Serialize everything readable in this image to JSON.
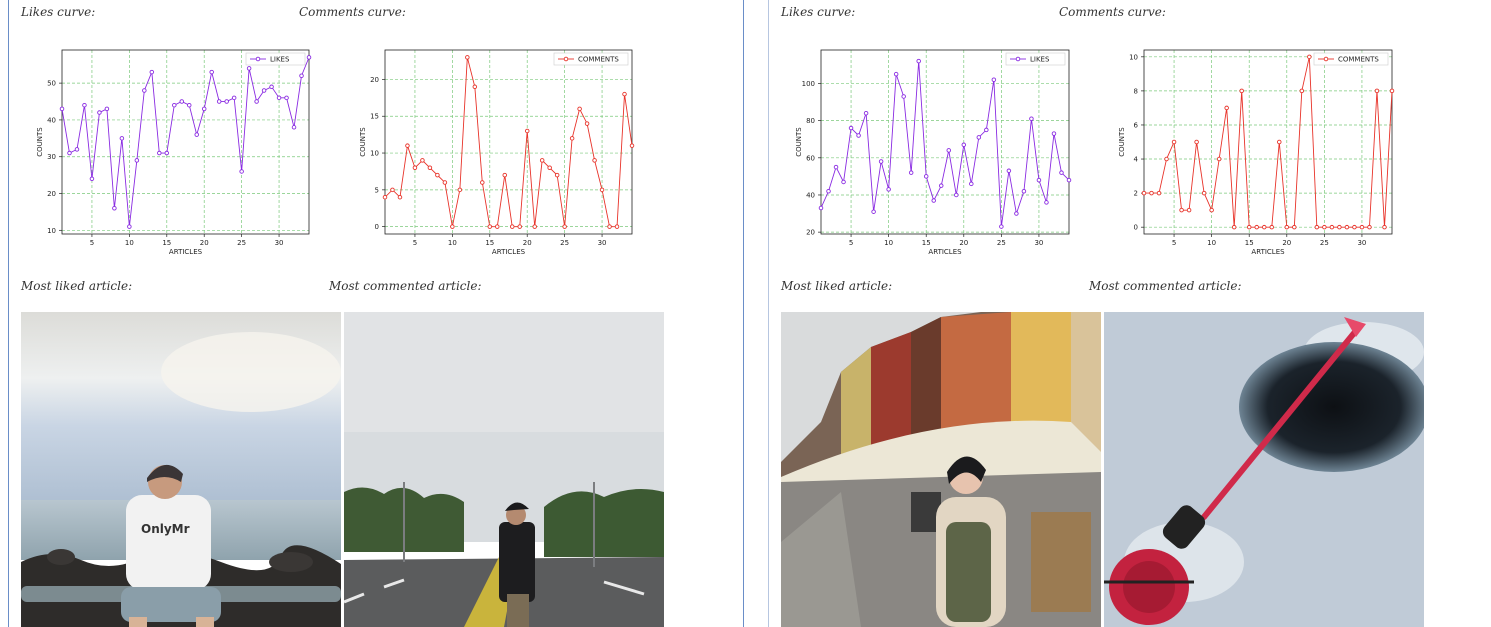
{
  "panels": [
    {
      "likes_label": "Likes curve:",
      "comments_label": "Comments curve:",
      "most_liked_label": "Most liked article:",
      "most_commented_label": "Most commented article:"
    },
    {
      "likes_label": "Likes curve:",
      "comments_label": "Comments curve:",
      "most_liked_label": "Most liked article:",
      "most_commented_label": "Most commented article:"
    }
  ],
  "chart_data": [
    {
      "type": "line",
      "xlabel": "ARTICLES",
      "ylabel": "COUNTS",
      "xlim": [
        1,
        34
      ],
      "ylim": [
        9,
        59
      ],
      "xticks": [
        5,
        10,
        15,
        20,
        25,
        30
      ],
      "yticks": [
        10,
        20,
        30,
        40,
        50
      ],
      "grid": true,
      "legend": "top-right",
      "color": "#8a2be2",
      "series": [
        {
          "name": "LIKES",
          "x": [
            1,
            2,
            3,
            4,
            5,
            6,
            7,
            8,
            9,
            10,
            11,
            12,
            13,
            14,
            15,
            16,
            17,
            18,
            19,
            20,
            21,
            22,
            23,
            24,
            25,
            26,
            27,
            28,
            29,
            30,
            31,
            32,
            33,
            34
          ],
          "values": [
            43,
            31,
            32,
            44,
            24,
            42,
            43,
            16,
            35,
            11,
            29,
            48,
            53,
            31,
            31,
            44,
            45,
            44,
            36,
            43,
            53,
            45,
            45,
            46,
            26,
            54,
            45,
            48,
            49,
            46,
            46,
            38,
            52,
            57
          ]
        }
      ]
    },
    {
      "type": "line",
      "xlabel": "ARTICLES",
      "ylabel": "COUNTS",
      "xlim": [
        1,
        34
      ],
      "ylim": [
        -1,
        24
      ],
      "xticks": [
        5,
        10,
        15,
        20,
        25,
        30
      ],
      "yticks": [
        0,
        5,
        10,
        15,
        20
      ],
      "grid": true,
      "legend": "top-right",
      "color": "#e8332a",
      "series": [
        {
          "name": "COMMENTS",
          "x": [
            1,
            2,
            3,
            4,
            5,
            6,
            7,
            8,
            9,
            10,
            11,
            12,
            13,
            14,
            15,
            16,
            17,
            18,
            19,
            20,
            21,
            22,
            23,
            24,
            25,
            26,
            27,
            28,
            29,
            30,
            31,
            32,
            33,
            34
          ],
          "values": [
            4,
            5,
            4,
            11,
            8,
            9,
            8,
            7,
            6,
            0,
            5,
            23,
            19,
            6,
            0,
            0,
            7,
            0,
            0,
            13,
            0,
            9,
            8,
            7,
            0,
            12,
            16,
            14,
            9,
            5,
            0,
            0,
            18,
            11
          ]
        }
      ]
    },
    {
      "type": "line",
      "xlabel": "ARTICLES",
      "ylabel": "COUNTS",
      "xlim": [
        1,
        34
      ],
      "ylim": [
        19,
        118
      ],
      "xticks": [
        5,
        10,
        15,
        20,
        25,
        30
      ],
      "yticks": [
        20,
        40,
        60,
        80,
        100
      ],
      "grid": true,
      "legend": "top-right",
      "color": "#8a2be2",
      "series": [
        {
          "name": "LIKES",
          "x": [
            1,
            2,
            3,
            4,
            5,
            6,
            7,
            8,
            9,
            10,
            11,
            12,
            13,
            14,
            15,
            16,
            17,
            18,
            19,
            20,
            21,
            22,
            23,
            24,
            25,
            26,
            27,
            28,
            29,
            30,
            31,
            32,
            33,
            34
          ],
          "values": [
            33,
            42,
            55,
            47,
            76,
            72,
            84,
            31,
            58,
            43,
            105,
            93,
            52,
            112,
            50,
            37,
            45,
            64,
            40,
            67,
            46,
            71,
            75,
            102,
            23,
            53,
            30,
            42,
            81,
            48,
            36,
            73,
            52,
            48
          ]
        }
      ]
    },
    {
      "type": "line",
      "xlabel": "ARTICLES",
      "ylabel": "COUNTS",
      "xlim": [
        1,
        34
      ],
      "ylim": [
        -0.4,
        10.4
      ],
      "xticks": [
        5,
        10,
        15,
        20,
        25,
        30
      ],
      "yticks": [
        0,
        2,
        4,
        6,
        8,
        10
      ],
      "grid": true,
      "legend": "top-right",
      "color": "#e8332a",
      "series": [
        {
          "name": "COMMENTS",
          "x": [
            1,
            2,
            3,
            4,
            5,
            6,
            7,
            8,
            9,
            10,
            11,
            12,
            13,
            14,
            15,
            16,
            17,
            18,
            19,
            20,
            21,
            22,
            23,
            24,
            25,
            26,
            27,
            28,
            29,
            30,
            31,
            32,
            33,
            34
          ],
          "values": [
            2,
            2,
            2,
            4,
            5,
            1,
            1,
            5,
            2,
            1,
            4,
            7,
            0,
            8,
            0,
            0,
            0,
            0,
            5,
            0,
            0,
            8,
            10,
            0,
            0,
            0,
            0,
            0,
            0,
            0,
            0,
            8,
            0,
            8
          ]
        }
      ]
    }
  ],
  "photos": [
    {
      "icon": "photo-seaside-person-cap"
    },
    {
      "icon": "photo-road-person-cap"
    },
    {
      "icon": "photo-canal-street-person"
    },
    {
      "icon": "photo-ice-fishing-rod"
    }
  ]
}
